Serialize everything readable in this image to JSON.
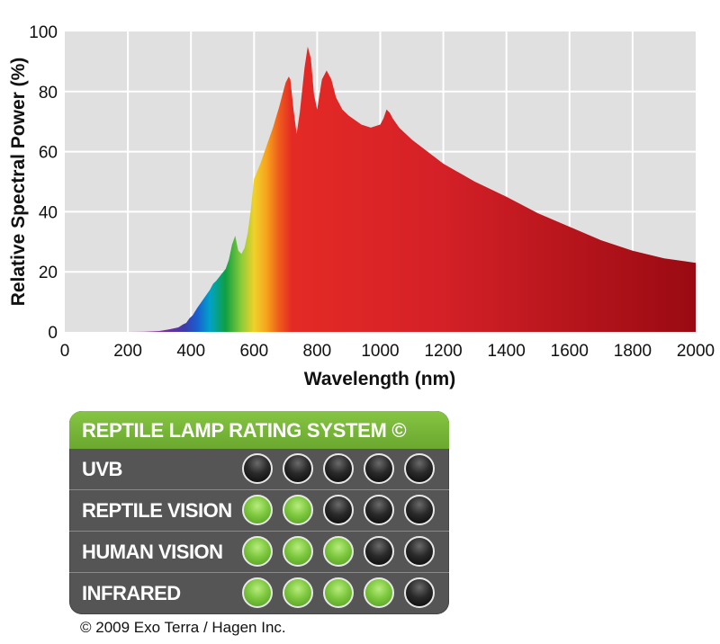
{
  "chart_data": {
    "type": "area",
    "xlabel": "Wavelength (nm)",
    "ylabel": "Relative Spectral Power (%)",
    "xlim": [
      0,
      2000
    ],
    "ylim": [
      0,
      100
    ],
    "x_ticks": [
      0,
      200,
      400,
      600,
      800,
      1000,
      1200,
      1400,
      1600,
      1800,
      2000
    ],
    "y_ticks": [
      0,
      20,
      40,
      60,
      80,
      100
    ],
    "grid": true,
    "fill": "spectral color gradient (violet to deep red)",
    "series": [
      {
        "x": [
          200,
          250,
          300,
          330,
          360,
          375,
          385,
          395,
          405,
          420,
          440,
          460,
          470,
          480,
          495,
          510,
          520,
          530,
          540,
          550,
          560,
          570,
          580,
          590,
          600,
          620,
          640,
          660,
          680,
          690,
          700,
          710,
          715,
          725,
          735,
          745,
          760,
          770,
          780,
          790,
          800,
          815,
          830,
          845,
          860,
          880,
          900,
          940,
          970,
          1000,
          1010,
          1020,
          1030,
          1040,
          1060,
          1100,
          1150,
          1200,
          1300,
          1400,
          1500,
          1600,
          1700,
          1800,
          1900,
          2000
        ],
        "y": [
          0,
          0.1,
          0.3,
          0.8,
          1.5,
          2.5,
          3,
          4.5,
          5.5,
          8,
          11,
          14,
          16,
          17,
          19,
          21,
          24,
          29,
          32,
          27,
          26,
          28,
          33,
          41,
          51,
          56,
          62,
          68,
          75,
          79,
          83,
          85,
          84,
          74,
          66,
          73,
          88,
          95,
          91,
          79,
          74,
          84,
          87,
          84,
          78,
          74,
          72,
          69,
          68,
          69,
          71,
          74,
          73,
          71,
          68,
          64,
          60,
          56,
          50,
          45,
          39.5,
          35,
          30.5,
          27,
          24.5,
          23
        ]
      }
    ]
  },
  "rating": {
    "header": "REPTILE LAMP RATING SYSTEM ©",
    "rows": [
      {
        "label": "UVB",
        "score": 0
      },
      {
        "label": "REPTILE VISION",
        "score": 2
      },
      {
        "label": "HUMAN VISION",
        "score": 3
      },
      {
        "label": "INFRARED",
        "score": 4
      }
    ],
    "max": 5,
    "colors": {
      "on": "#7ec83f",
      "off": "#111111",
      "header_bg": "#7bbd3b",
      "panel_bg": "#555555"
    }
  },
  "copyright": "© 2009 Exo Terra / Hagen Inc."
}
